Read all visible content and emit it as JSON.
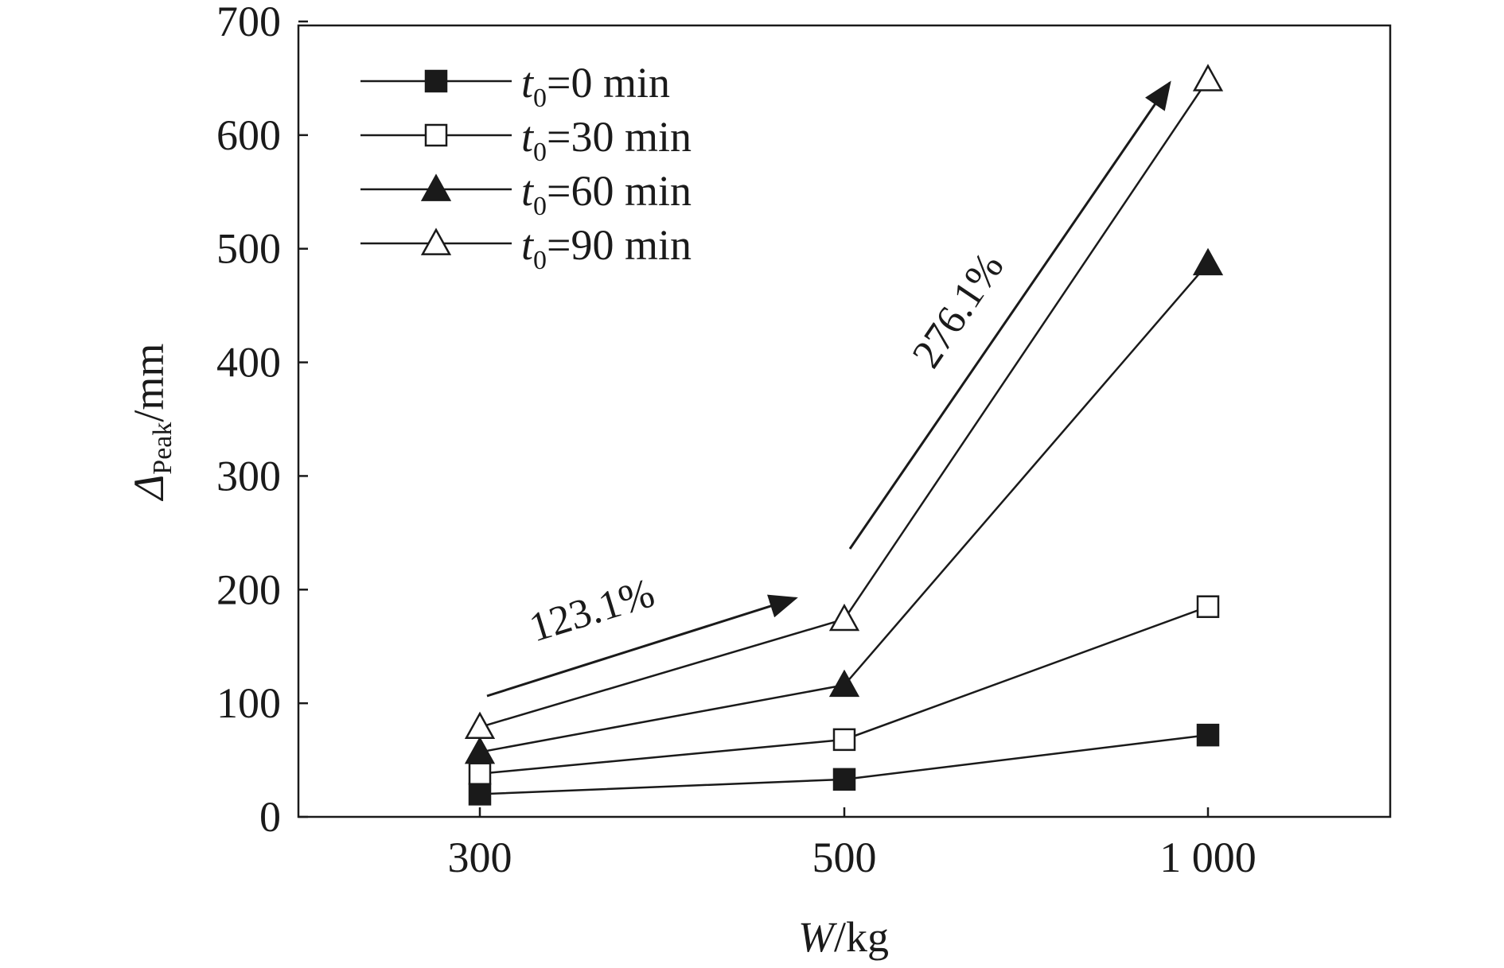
{
  "chart_data": {
    "type": "line",
    "categories": [
      "300",
      "500",
      "1 000"
    ],
    "xlabel_var": "W",
    "xlabel_unit": "/kg",
    "ylabel_sym": "Δ",
    "ylabel_sub": "Peak",
    "ylabel_unit": "/mm",
    "ylim": [
      0,
      700
    ],
    "yticks": [
      "0",
      "100",
      "200",
      "300",
      "400",
      "500",
      "600",
      "700"
    ],
    "grid": false,
    "legend_position": "top-left",
    "series": [
      {
        "label_var": "t",
        "label_sub": "0",
        "label_rest": "=0 min",
        "marker": "square-filled",
        "values": [
          20,
          33,
          72
        ]
      },
      {
        "label_var": "t",
        "label_sub": "0",
        "label_rest": "=30 min",
        "marker": "square-open",
        "values": [
          38,
          68,
          185
        ]
      },
      {
        "label_var": "t",
        "label_sub": "0",
        "label_rest": "=60 min",
        "marker": "triangle-filled",
        "values": [
          57,
          116,
          487
        ]
      },
      {
        "label_var": "t",
        "label_sub": "0",
        "label_rest": "=90 min",
        "marker": "triangle-open",
        "values": [
          79,
          174,
          649
        ]
      }
    ],
    "annotations": [
      {
        "text": "123.1%"
      },
      {
        "text": "276.1%"
      }
    ]
  }
}
